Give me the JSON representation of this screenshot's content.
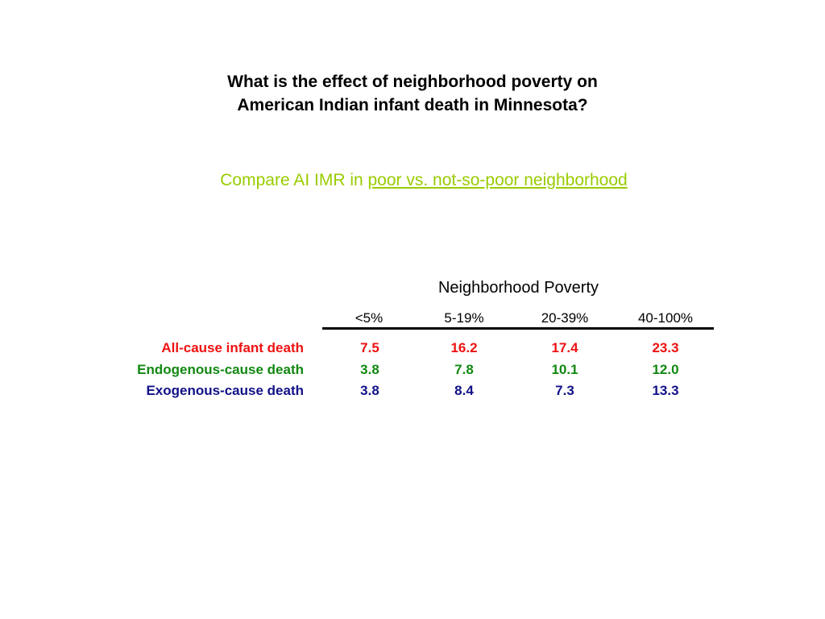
{
  "title": {
    "line1": "What is the effect of neighborhood poverty on",
    "line2": "American Indian infant death in Minnesota?"
  },
  "subtitle": {
    "prefix": "Compare AI IMR in ",
    "link": "poor vs. not-so-poor neighborhood"
  },
  "colors": {
    "subtitle": "#99cc00",
    "all_cause": "#ee1111",
    "endogenous": "#118811",
    "exogenous": "#111188"
  },
  "chart_data": {
    "type": "table",
    "title": "Neighborhood Poverty",
    "columns": [
      "<5%",
      "5-19%",
      "20-39%",
      "40-100%"
    ],
    "rows": [
      {
        "label": "All-cause infant death",
        "values": [
          "7.5",
          "16.2",
          "17.4",
          "23.3"
        ]
      },
      {
        "label": "Endogenous-cause death",
        "values": [
          "3.8",
          "7.8",
          "10.1",
          "12.0"
        ]
      },
      {
        "label": "Exogenous-cause death",
        "values": [
          "3.8",
          "8.4",
          "7.3",
          "13.3"
        ]
      }
    ]
  }
}
